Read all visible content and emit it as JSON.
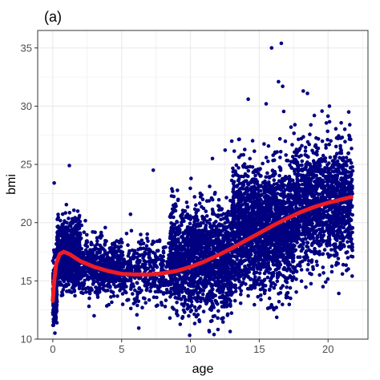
{
  "chart_data": {
    "type": "scatter",
    "panel_label": "(a)",
    "xlabel": "age",
    "ylabel": "bmi",
    "xlim": [
      -1.1,
      22.9
    ],
    "ylim": [
      10,
      36.5
    ],
    "x_ticks": [
      0,
      5,
      10,
      15,
      20
    ],
    "y_ticks": [
      10,
      15,
      20,
      25,
      30,
      35
    ],
    "grid": true,
    "point_color": "#000080",
    "curve_color": "#ee1c25",
    "background_color": "#ffffff",
    "grid_color": "#ebebeb",
    "points_description": "about 7000 observations of bmi versus age (0 to 22 years)",
    "clusters": [
      {
        "x_range": [
          0,
          0.3
        ],
        "y_mean": 14.0,
        "y_sd": 1.4,
        "n": 260
      },
      {
        "x_range": [
          0.3,
          2.0
        ],
        "y_mean": 17.2,
        "y_sd": 1.3,
        "n": 1000
      },
      {
        "x_range": [
          2.0,
          5.0
        ],
        "y_mean": 16.2,
        "y_sd": 1.2,
        "n": 520
      },
      {
        "x_range": [
          5.0,
          8.5
        ],
        "y_mean": 15.7,
        "y_sd": 1.4,
        "n": 380
      },
      {
        "x_range": [
          8.5,
          13.0
        ],
        "y_mean": 16.8,
        "y_sd": 2.2,
        "n": 1500
      },
      {
        "x_range": [
          13.0,
          17.5
        ],
        "y_mean": 19.6,
        "y_sd": 2.6,
        "n": 1900
      },
      {
        "x_range": [
          17.5,
          21.8
        ],
        "y_mean": 21.6,
        "y_sd": 2.5,
        "n": 1400
      }
    ],
    "outliers": [
      {
        "x": 15.9,
        "y": 35.0
      },
      {
        "x": 16.6,
        "y": 35.4
      },
      {
        "x": 16.4,
        "y": 32.1
      },
      {
        "x": 16.7,
        "y": 31.7
      },
      {
        "x": 18.2,
        "y": 31.3
      },
      {
        "x": 18.5,
        "y": 31.1
      },
      {
        "x": 14.2,
        "y": 30.6
      },
      {
        "x": 15.5,
        "y": 30.2
      },
      {
        "x": 1.2,
        "y": 24.9
      },
      {
        "x": 0.1,
        "y": 23.4
      },
      {
        "x": 7.3,
        "y": 24.5
      },
      {
        "x": 21.5,
        "y": 29.5
      },
      {
        "x": 20.1,
        "y": 30.0
      },
      {
        "x": 19.0,
        "y": 29.2
      },
      {
        "x": 0.05,
        "y": 11.2
      },
      {
        "x": 3.0,
        "y": 12.0
      },
      {
        "x": 13.0,
        "y": 27.0
      },
      {
        "x": 11.6,
        "y": 25.5
      }
    ],
    "series": [
      {
        "type": "line",
        "x": [
          0,
          0.1,
          0.25,
          0.5,
          0.8,
          1.2,
          2,
          3,
          4,
          5,
          6,
          7,
          8,
          9,
          10,
          11,
          12,
          13,
          14,
          15,
          16,
          17,
          18,
          19,
          20,
          21,
          21.7
        ],
        "values": [
          13.3,
          15.0,
          16.5,
          17.3,
          17.5,
          17.3,
          16.7,
          16.2,
          15.85,
          15.6,
          15.55,
          15.55,
          15.65,
          15.85,
          16.2,
          16.65,
          17.2,
          17.8,
          18.45,
          19.1,
          19.75,
          20.35,
          20.9,
          21.35,
          21.7,
          22.0,
          22.2
        ]
      }
    ]
  }
}
